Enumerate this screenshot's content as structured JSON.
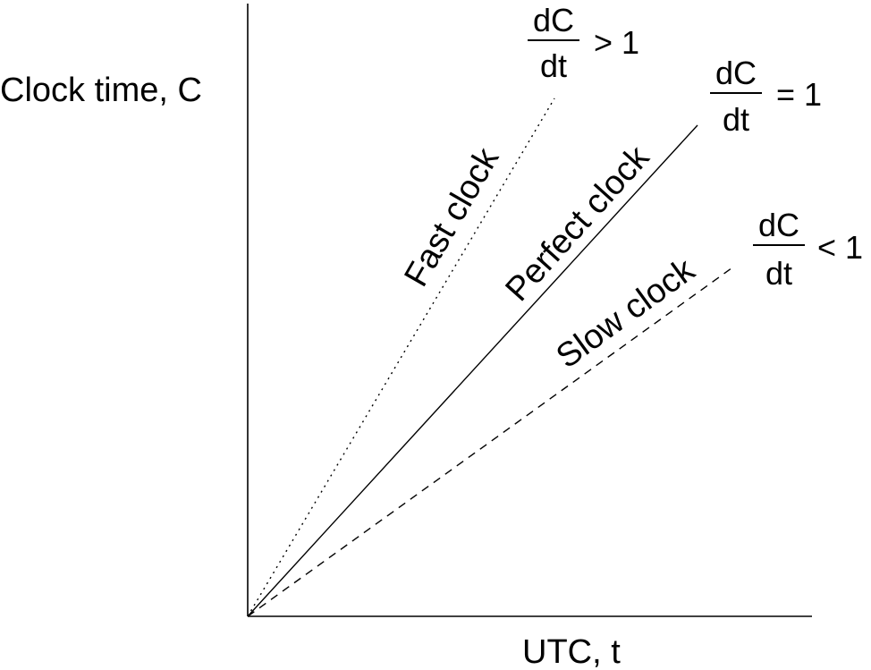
{
  "axes": {
    "y_label": "Clock time, C",
    "x_label": "UTC, t"
  },
  "lines": [
    {
      "id": "fast",
      "label": "Fast clock",
      "style": "dotted",
      "slope_relation": "> 1",
      "derivative": {
        "numerator": "dC",
        "denominator": "dt",
        "relation": "> 1"
      }
    },
    {
      "id": "perfect",
      "label": "Perfect clock",
      "style": "solid",
      "slope_relation": "= 1",
      "derivative": {
        "numerator": "dC",
        "denominator": "dt",
        "relation": "= 1"
      }
    },
    {
      "id": "slow",
      "label": "Slow clock",
      "style": "dashed",
      "slope_relation": "< 1",
      "derivative": {
        "numerator": "dC",
        "denominator": "dt",
        "relation": "< 1"
      }
    }
  ],
  "colors": {
    "ink": "#000000",
    "background": "#ffffff"
  }
}
